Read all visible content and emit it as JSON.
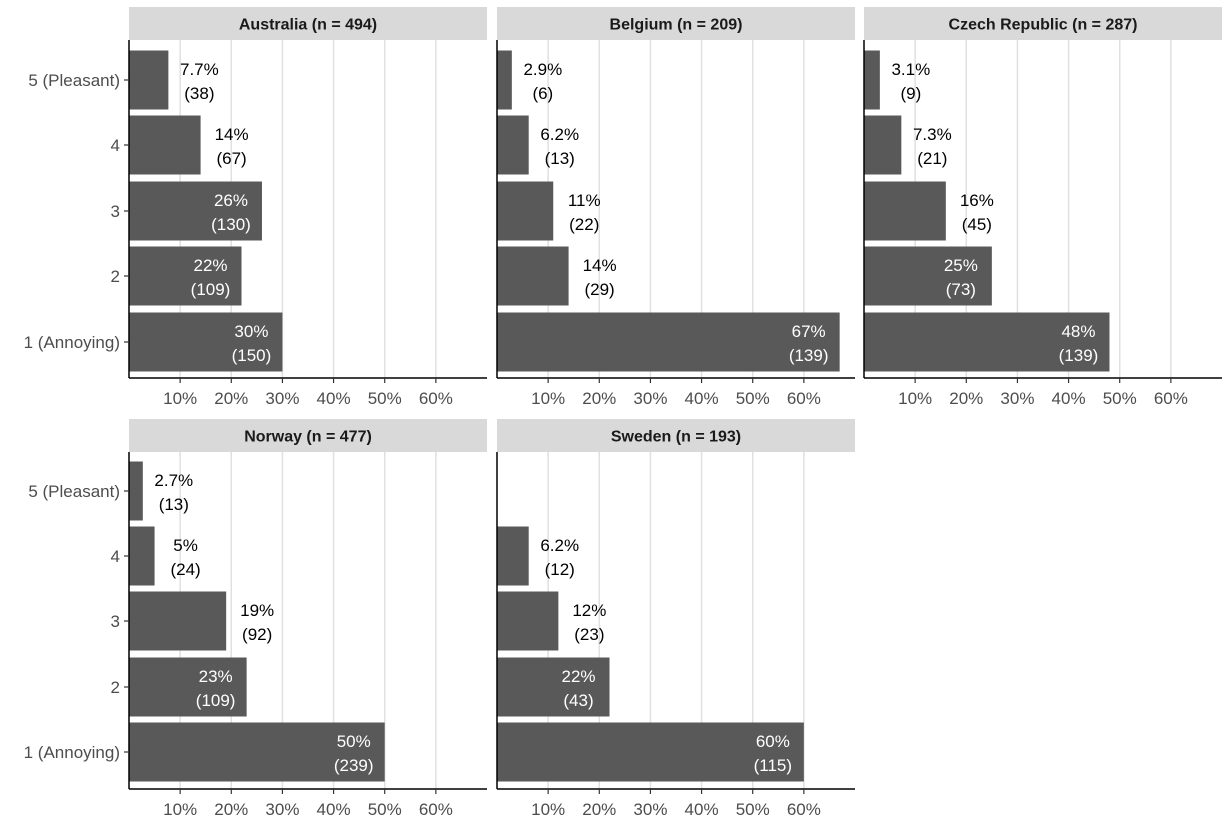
{
  "chart_data": {
    "type": "bar",
    "orientation": "horizontal",
    "faceted": true,
    "categories": [
      "5 (Pleasant)",
      "4",
      "3",
      "2",
      "1 (Annoying)"
    ],
    "x_ticks": [
      "10%",
      "20%",
      "30%",
      "40%",
      "50%",
      "60%"
    ],
    "x_range": [
      0,
      70
    ],
    "grid": "vertical major lines",
    "colors": {
      "bar": "#595959",
      "strip": "#d9d9d9",
      "grid": "#e0e0e0",
      "axis": "#000000",
      "label_inside": "#ffffff",
      "label_outside": "#000000"
    },
    "panels": [
      {
        "title": "Australia (n = 494)",
        "bars": [
          {
            "category": "5 (Pleasant)",
            "value": 7.7,
            "pct_label": "7.7%",
            "count_label": "(38)"
          },
          {
            "category": "4",
            "value": 14,
            "pct_label": "14%",
            "count_label": "(67)"
          },
          {
            "category": "3",
            "value": 26,
            "pct_label": "26%",
            "count_label": "(130)"
          },
          {
            "category": "2",
            "value": 22,
            "pct_label": "22%",
            "count_label": "(109)"
          },
          {
            "category": "1 (Annoying)",
            "value": 30,
            "pct_label": "30%",
            "count_label": "(150)"
          }
        ]
      },
      {
        "title": "Belgium (n = 209)",
        "bars": [
          {
            "category": "5 (Pleasant)",
            "value": 2.9,
            "pct_label": "2.9%",
            "count_label": "(6)"
          },
          {
            "category": "4",
            "value": 6.2,
            "pct_label": "6.2%",
            "count_label": "(13)"
          },
          {
            "category": "3",
            "value": 11,
            "pct_label": "11%",
            "count_label": "(22)"
          },
          {
            "category": "2",
            "value": 14,
            "pct_label": "14%",
            "count_label": "(29)"
          },
          {
            "category": "1 (Annoying)",
            "value": 67,
            "pct_label": "67%",
            "count_label": "(139)"
          }
        ]
      },
      {
        "title": "Czech Republic (n = 287)",
        "bars": [
          {
            "category": "5 (Pleasant)",
            "value": 3.1,
            "pct_label": "3.1%",
            "count_label": "(9)"
          },
          {
            "category": "4",
            "value": 7.3,
            "pct_label": "7.3%",
            "count_label": "(21)"
          },
          {
            "category": "3",
            "value": 16,
            "pct_label": "16%",
            "count_label": "(45)"
          },
          {
            "category": "2",
            "value": 25,
            "pct_label": "25%",
            "count_label": "(73)"
          },
          {
            "category": "1 (Annoying)",
            "value": 48,
            "pct_label": "48%",
            "count_label": "(139)"
          }
        ]
      },
      {
        "title": "Norway (n = 477)",
        "bars": [
          {
            "category": "5 (Pleasant)",
            "value": 2.7,
            "pct_label": "2.7%",
            "count_label": "(13)"
          },
          {
            "category": "4",
            "value": 5,
            "pct_label": "5%",
            "count_label": "(24)"
          },
          {
            "category": "3",
            "value": 19,
            "pct_label": "19%",
            "count_label": "(92)"
          },
          {
            "category": "2",
            "value": 23,
            "pct_label": "23%",
            "count_label": "(109)"
          },
          {
            "category": "1 (Annoying)",
            "value": 50,
            "pct_label": "50%",
            "count_label": "(239)"
          }
        ]
      },
      {
        "title": "Sweden (n = 193)",
        "bars": [
          {
            "category": "4",
            "value": 6.2,
            "pct_label": "6.2%",
            "count_label": "(12)"
          },
          {
            "category": "3",
            "value": 12,
            "pct_label": "12%",
            "count_label": "(23)"
          },
          {
            "category": "2",
            "value": 22,
            "pct_label": "22%",
            "count_label": "(43)"
          },
          {
            "category": "1 (Annoying)",
            "value": 60,
            "pct_label": "60%",
            "count_label": "(115)"
          }
        ]
      }
    ]
  }
}
